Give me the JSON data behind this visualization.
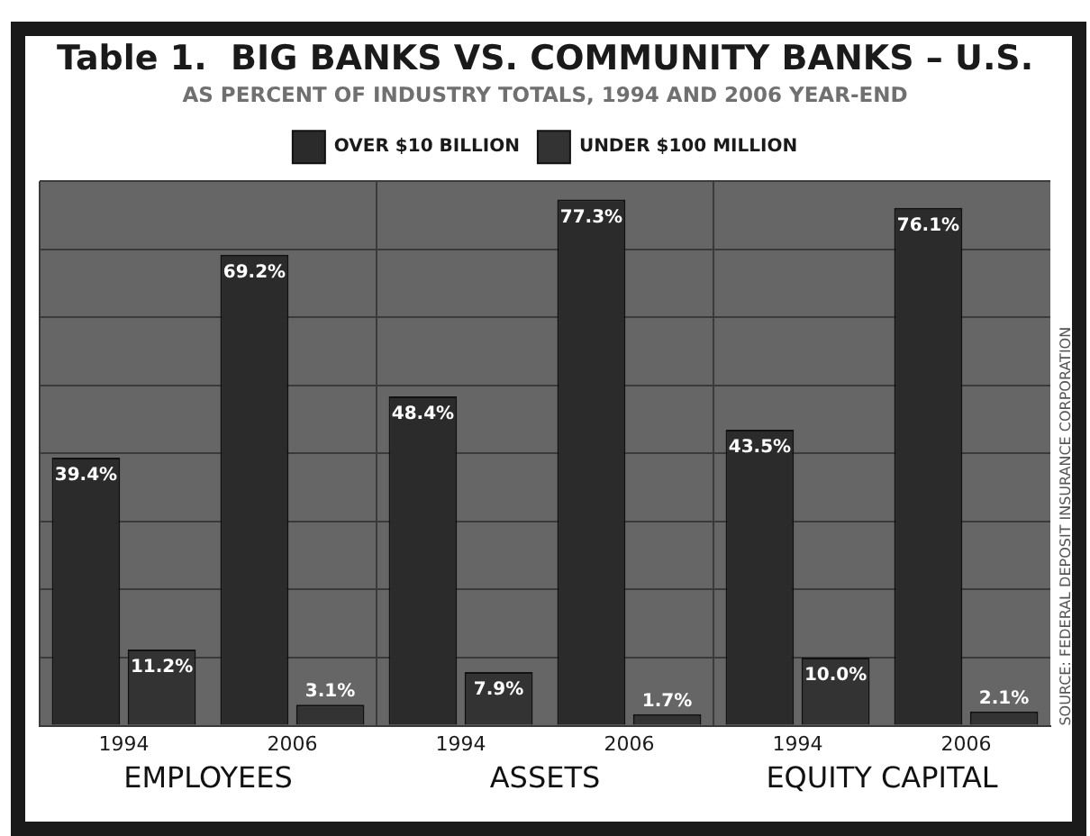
{
  "chart_data": {
    "type": "bar",
    "title": "Table 1.  BIG BANKS VS. COMMUNITY BANKS – U.S.",
    "subtitle": "AS PERCENT OF INDUSTRY TOTALS, 1994 AND 2006 YEAR-END",
    "categories": [
      "1994",
      "2006",
      "1994",
      "2006",
      "1994",
      "2006"
    ],
    "series": [
      {
        "name": "OVER $10 BILLION",
        "color": "#2b2b2b",
        "values": [
          39.4,
          69.2,
          48.4,
          77.3,
          43.5,
          76.1
        ],
        "value_labels": [
          "39.4%",
          "69.2%",
          "48.4%",
          "77.3%",
          "43.5%",
          "76.1%"
        ]
      },
      {
        "name": "UNDER $100 MILLION",
        "color": "#333333",
        "values": [
          11.2,
          3.1,
          7.9,
          1.7,
          10.0,
          2.1
        ],
        "value_labels": [
          "11.2%",
          "3.1%",
          "7.9%",
          "1.7%",
          "10.0%",
          "2.1%"
        ]
      }
    ],
    "ylim": [
      0,
      80
    ],
    "yticks": [
      {
        "value": 0,
        "label": null
      },
      {
        "value": 10,
        "label": null
      },
      {
        "value": 20,
        "label": null
      },
      {
        "value": 30,
        "label": null
      },
      {
        "value": 40,
        "label": null
      },
      {
        "value": 50,
        "label": null
      },
      {
        "value": 60,
        "label": null
      },
      {
        "value": 70,
        "label": null
      },
      {
        "value": 80,
        "label": null
      }
    ],
    "tick_labels": "x",
    "grid": true,
    "legend": "top",
    "annotations": [
      "EMPLOYEES",
      "ASSETS",
      "EQUITY CAPITAL",
      "SOURCE: FEDERAL DEPOSIT INSURANCE CORPORATION"
    ]
  }
}
